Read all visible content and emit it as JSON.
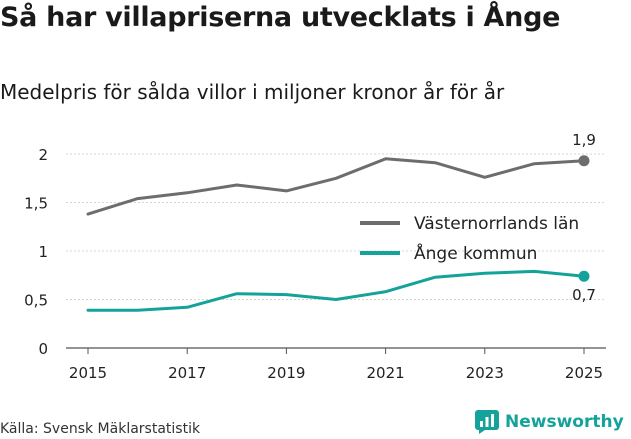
{
  "title": "Så har villapriserna utvecklats i Ånge",
  "subtitle": "Medelpris för sålda villor i miljoner kronor år för år",
  "source": "Källa: Svensk Mäklarstatistik",
  "brand": {
    "name": "Newsworthy",
    "icon": "newsworthy-logo-icon"
  },
  "colors": {
    "series1": "#6d6d6d",
    "series2": "#14a39a",
    "grid": "#d4d4d4"
  },
  "chart_data": {
    "type": "line",
    "title": "Så har villapriserna utvecklats i Ånge",
    "subtitle": "Medelpris för sålda villor i miljoner kronor år för år",
    "xlabel": "",
    "ylabel": "",
    "x": [
      2015,
      2016,
      2017,
      2018,
      2019,
      2020,
      2021,
      2022,
      2023,
      2024,
      2025
    ],
    "xticks": [
      2015,
      2017,
      2019,
      2021,
      2023,
      2025
    ],
    "xtick_labels": [
      "2015",
      "2017",
      "2019",
      "2021",
      "2023",
      "2025"
    ],
    "yticks": [
      0,
      0.5,
      1,
      1.5,
      2
    ],
    "ytick_labels": [
      "0",
      "0,5",
      "1",
      "1,5",
      "2"
    ],
    "xlim": [
      2015,
      2025
    ],
    "ylim": [
      0,
      2
    ],
    "grid": true,
    "legend_position": "right",
    "series": [
      {
        "name": "Västernorrlands län",
        "color": "#6d6d6d",
        "values": [
          1.38,
          1.54,
          1.6,
          1.68,
          1.62,
          1.75,
          1.95,
          1.91,
          1.76,
          1.9,
          1.93
        ],
        "end_label": "1,9"
      },
      {
        "name": "Ånge kommun",
        "color": "#14a39a",
        "values": [
          0.39,
          0.39,
          0.42,
          0.56,
          0.55,
          0.5,
          0.58,
          0.73,
          0.77,
          0.79,
          0.74
        ],
        "end_label": "0,7"
      }
    ]
  }
}
